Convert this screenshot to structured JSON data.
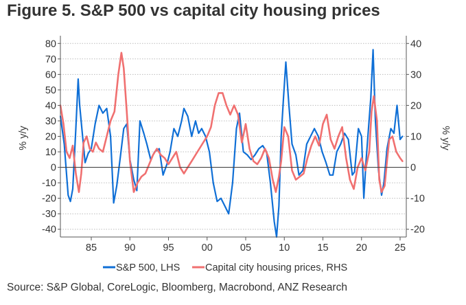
{
  "title": "Figure 5. S&P 500 vs capital city housing prices",
  "source": "Source: S&P Global, CoreLogic, Bloomberg, Macrobond, ANZ Research",
  "colors": {
    "sp500": "#0f6fd6",
    "housing": "#f07070",
    "grid": "#bcbcbc",
    "zero": "#444444"
  },
  "chart_data": {
    "type": "line",
    "xlabel": "",
    "ylabel_left": "% y/y",
    "ylabel_right": "% y/y",
    "xlim": [
      1981,
      2025.8
    ],
    "ylim_left": [
      -45,
      85
    ],
    "ylim_right": [
      -22.5,
      42.5
    ],
    "xticks": [
      1985,
      1990,
      1995,
      2000,
      2005,
      2010,
      2015,
      2020,
      2025
    ],
    "xticklabels": [
      "85",
      "90",
      "95",
      "00",
      "05",
      "10",
      "15",
      "20",
      "25"
    ],
    "yticks_left": [
      80,
      70,
      60,
      50,
      40,
      30,
      20,
      10,
      0,
      -10,
      -20,
      -30,
      -40
    ],
    "yticklabels_left": [
      "80",
      "70",
      "60",
      "50",
      "40",
      "30",
      "20",
      "10",
      "0",
      "-10",
      "-20",
      "-30",
      "-40"
    ],
    "yticks_right": [
      40,
      30,
      20,
      10,
      0,
      -10,
      -20
    ],
    "yticklabels_right": [
      "40",
      "30",
      "20",
      "10",
      "0",
      "-10",
      "-20"
    ],
    "grid": true,
    "legend_position": "bottom",
    "series": [
      {
        "name": "S&P 500, LHS",
        "axis": "left",
        "x": [
          1981.0,
          1981.5,
          1982.0,
          1982.3,
          1982.6,
          1983.0,
          1983.3,
          1983.5,
          1983.8,
          1984.2,
          1984.6,
          1985.0,
          1985.5,
          1986.0,
          1986.5,
          1987.0,
          1987.5,
          1987.9,
          1988.3,
          1988.8,
          1989.2,
          1989.6,
          1990.0,
          1990.5,
          1990.9,
          1991.3,
          1991.8,
          1992.2,
          1992.7,
          1993.2,
          1993.8,
          1994.3,
          1994.8,
          1995.2,
          1995.7,
          1996.2,
          1996.7,
          1997.0,
          1997.5,
          1998.0,
          1998.5,
          1998.9,
          1999.3,
          1999.8,
          2000.3,
          2000.8,
          2001.3,
          2001.8,
          2002.3,
          2002.8,
          2003.3,
          2003.8,
          2004.2,
          2004.7,
          2005.2,
          2005.7,
          2006.2,
          2006.7,
          2007.2,
          2007.7,
          2008.2,
          2008.7,
          2009.0,
          2009.3,
          2009.6,
          2009.9,
          2010.2,
          2010.6,
          2011.0,
          2011.5,
          2011.9,
          2012.4,
          2012.9,
          2013.4,
          2013.9,
          2014.4,
          2014.9,
          2015.4,
          2015.9,
          2016.3,
          2016.8,
          2017.3,
          2017.8,
          2018.3,
          2018.8,
          2019.1,
          2019.6,
          2020.0,
          2020.3,
          2020.6,
          2020.9,
          2021.2,
          2021.5,
          2021.8,
          2022.2,
          2022.6,
          2022.9,
          2023.3,
          2023.8,
          2024.2,
          2024.6,
          2025.0,
          2025.3
        ],
        "values": [
          33,
          15,
          -18,
          -22,
          -14,
          25,
          57,
          40,
          24,
          3,
          9,
          12,
          28,
          40,
          35,
          38,
          20,
          -23,
          -12,
          8,
          25,
          28,
          5,
          -8,
          -15,
          30,
          22,
          15,
          5,
          10,
          12,
          -5,
          2,
          10,
          25,
          20,
          30,
          38,
          33,
          20,
          30,
          22,
          25,
          20,
          10,
          -10,
          -22,
          -20,
          -25,
          -30,
          -10,
          25,
          35,
          10,
          8,
          5,
          8,
          12,
          14,
          10,
          -10,
          -35,
          -45,
          -25,
          20,
          45,
          68,
          40,
          15,
          8,
          -5,
          -2,
          15,
          20,
          25,
          20,
          10,
          3,
          -5,
          -5,
          10,
          15,
          22,
          18,
          -5,
          -3,
          25,
          20,
          -20,
          5,
          25,
          45,
          76,
          30,
          -2,
          -18,
          -10,
          12,
          25,
          22,
          40,
          18,
          20
        ]
      },
      {
        "name": "Capital city housing prices, RHS",
        "axis": "right",
        "x": [
          1981.0,
          1981.4,
          1981.8,
          1982.2,
          1982.6,
          1983.0,
          1983.4,
          1983.7,
          1984.0,
          1984.4,
          1984.8,
          1985.2,
          1985.6,
          1986.0,
          1986.5,
          1987.0,
          1987.5,
          1988.0,
          1988.5,
          1988.9,
          1989.2,
          1989.6,
          1990.0,
          1990.5,
          1991.0,
          1991.5,
          1992.0,
          1992.5,
          1993.0,
          1993.5,
          1994.0,
          1994.5,
          1995.0,
          1995.5,
          1996.0,
          1996.5,
          1997.0,
          1997.5,
          1998.0,
          1998.5,
          1999.0,
          1999.5,
          2000.0,
          2000.5,
          2001.0,
          2001.5,
          2002.0,
          2002.5,
          2003.0,
          2003.5,
          2004.0,
          2004.5,
          2005.0,
          2005.5,
          2006.0,
          2006.5,
          2007.0,
          2007.5,
          2008.0,
          2008.5,
          2008.9,
          2009.3,
          2009.6,
          2010.0,
          2010.5,
          2011.0,
          2011.5,
          2012.0,
          2012.5,
          2013.0,
          2013.5,
          2014.0,
          2014.5,
          2015.0,
          2015.5,
          2016.0,
          2016.5,
          2017.0,
          2017.5,
          2018.0,
          2018.5,
          2019.0,
          2019.5,
          2020.0,
          2020.5,
          2021.0,
          2021.3,
          2021.6,
          2022.0,
          2022.3,
          2022.6,
          2023.0,
          2023.3,
          2023.6,
          2024.0,
          2024.5,
          2025.0,
          2025.3
        ],
        "values": [
          20,
          14,
          5,
          3,
          7,
          -2,
          -8,
          -2,
          8,
          10,
          6,
          5,
          8,
          6,
          5,
          10,
          15,
          18,
          30,
          37,
          32,
          18,
          2,
          -8,
          -5,
          -3,
          -2,
          1,
          4,
          6,
          4,
          3,
          1,
          3,
          5,
          0,
          -2,
          0,
          2,
          4,
          6,
          8,
          10,
          13,
          20,
          24,
          24,
          20,
          17,
          20,
          17,
          8,
          14,
          6,
          2,
          1,
          3,
          6,
          3,
          -4,
          -8,
          -3,
          2,
          13,
          10,
          -1,
          -4,
          -3,
          -2,
          3,
          7,
          10,
          7,
          14,
          17,
          9,
          6,
          10,
          13,
          3,
          -4,
          -7,
          0,
          3,
          -1,
          5,
          18,
          23,
          15,
          -4,
          -8,
          -6,
          2,
          9,
          10,
          5,
          3,
          2
        ]
      }
    ]
  },
  "legend": [
    {
      "label": "S&P 500, LHS"
    },
    {
      "label": "Capital city housing prices, RHS"
    }
  ]
}
